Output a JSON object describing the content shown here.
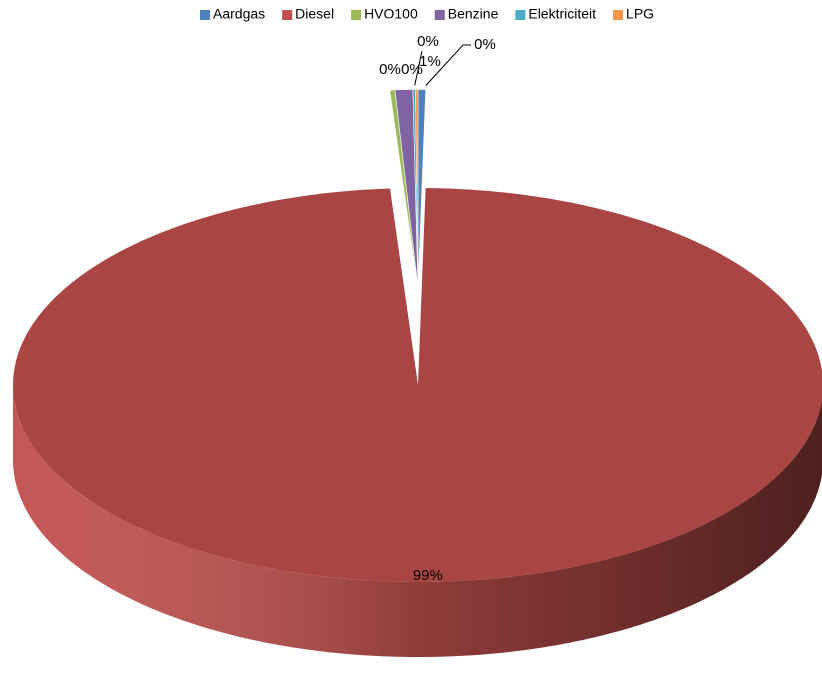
{
  "chart_data": {
    "type": "pie",
    "three_d": true,
    "categories": [
      "Aardgas",
      "Diesel",
      "HVO100",
      "Benzine",
      "Elektriciteit",
      "LPG"
    ],
    "values": [
      0.3,
      98.6,
      0.2,
      0.7,
      0.1,
      0.1
    ],
    "value_labels": [
      "0%",
      "99%",
      "0%",
      "1%",
      "0%",
      "0%"
    ],
    "colors": [
      "#4f81bd",
      "#c0504d",
      "#9bbb59",
      "#8064a2",
      "#4bacc6",
      "#f79646"
    ],
    "legend": "top"
  }
}
